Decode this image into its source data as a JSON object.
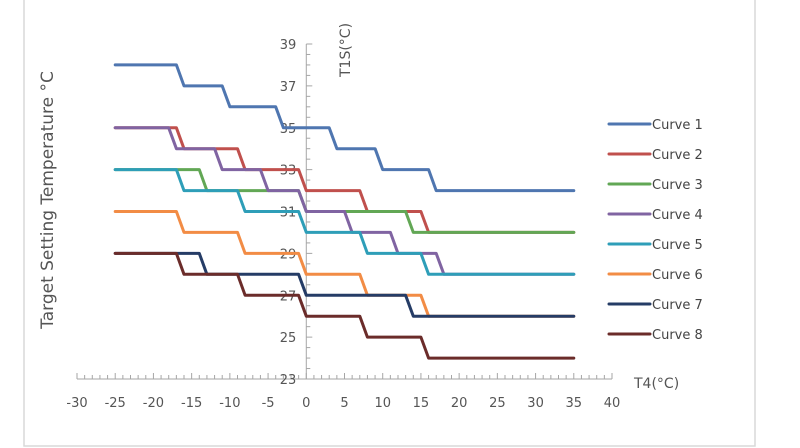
{
  "chart_data": {
    "type": "line",
    "ylabel": "Target  Setting  Temperature  °C",
    "y_axis_title": "T1S(°C)",
    "xlabel": "T4(°C)",
    "xlim": [
      -30,
      40
    ],
    "ylim": [
      23,
      39
    ],
    "x_ticks": [
      -30,
      -25,
      -20,
      -15,
      -10,
      -5,
      0,
      5,
      10,
      15,
      20,
      25,
      30,
      35,
      40
    ],
    "y_ticks": [
      39,
      37,
      35,
      33,
      31,
      29,
      27,
      25,
      23
    ],
    "grid": false,
    "legend_position": "right",
    "series": [
      {
        "name": "Curve 1",
        "color": "#4F76B0",
        "points": [
          [
            -25,
            38
          ],
          [
            -17,
            38
          ],
          [
            -16,
            37
          ],
          [
            -11,
            37
          ],
          [
            -10,
            36
          ],
          [
            -4,
            36
          ],
          [
            -3,
            35
          ],
          [
            3,
            35
          ],
          [
            4,
            34
          ],
          [
            9,
            34
          ],
          [
            10,
            33
          ],
          [
            16,
            33
          ],
          [
            17,
            32
          ],
          [
            35,
            32
          ]
        ]
      },
      {
        "name": "Curve 2",
        "color": "#C0504D",
        "points": [
          [
            -25,
            35
          ],
          [
            -17,
            35
          ],
          [
            -16,
            34
          ],
          [
            -9,
            34
          ],
          [
            -8,
            33
          ],
          [
            -1,
            33
          ],
          [
            0,
            32
          ],
          [
            7,
            32
          ],
          [
            8,
            31
          ],
          [
            15,
            31
          ],
          [
            16,
            30
          ],
          [
            35,
            30
          ]
        ]
      },
      {
        "name": "Curve 3",
        "color": "#62A755",
        "points": [
          [
            -25,
            33
          ],
          [
            -14,
            33
          ],
          [
            -13,
            32
          ],
          [
            -1,
            32
          ],
          [
            0,
            31
          ],
          [
            13,
            31
          ],
          [
            14,
            30
          ],
          [
            35,
            30
          ]
        ]
      },
      {
        "name": "Curve 4",
        "color": "#8064A2",
        "points": [
          [
            -25,
            35
          ],
          [
            -18,
            35
          ],
          [
            -17,
            34
          ],
          [
            -12,
            34
          ],
          [
            -11,
            33
          ],
          [
            -6,
            33
          ],
          [
            -5,
            32
          ],
          [
            -1,
            32
          ],
          [
            0,
            31
          ],
          [
            5,
            31
          ],
          [
            6,
            30
          ],
          [
            11,
            30
          ],
          [
            12,
            29
          ],
          [
            17,
            29
          ],
          [
            18,
            28
          ],
          [
            35,
            28
          ]
        ]
      },
      {
        "name": "Curve 5",
        "color": "#2E9EB8",
        "points": [
          [
            -25,
            33
          ],
          [
            -17,
            33
          ],
          [
            -16,
            32
          ],
          [
            -9,
            32
          ],
          [
            -8,
            31
          ],
          [
            -1,
            31
          ],
          [
            0,
            30
          ],
          [
            7,
            30
          ],
          [
            8,
            29
          ],
          [
            15,
            29
          ],
          [
            16,
            28
          ],
          [
            35,
            28
          ]
        ]
      },
      {
        "name": "Curve 6",
        "color": "#F28C45",
        "points": [
          [
            -25,
            31
          ],
          [
            -17,
            31
          ],
          [
            -16,
            30
          ],
          [
            -9,
            30
          ],
          [
            -8,
            29
          ],
          [
            -1,
            29
          ],
          [
            0,
            28
          ],
          [
            7,
            28
          ],
          [
            8,
            27
          ],
          [
            15,
            27
          ],
          [
            16,
            26
          ],
          [
            35,
            26
          ]
        ]
      },
      {
        "name": "Curve 7",
        "color": "#253C66",
        "points": [
          [
            -25,
            29
          ],
          [
            -14,
            29
          ],
          [
            -13,
            28
          ],
          [
            -1,
            28
          ],
          [
            0,
            27
          ],
          [
            13,
            27
          ],
          [
            14,
            26
          ],
          [
            35,
            26
          ]
        ]
      },
      {
        "name": "Curve 8",
        "color": "#6B2C2A",
        "points": [
          [
            -25,
            29
          ],
          [
            -17,
            29
          ],
          [
            -16,
            28
          ],
          [
            -9,
            28
          ],
          [
            -8,
            27
          ],
          [
            -1,
            27
          ],
          [
            0,
            26
          ],
          [
            7,
            26
          ],
          [
            8,
            25
          ],
          [
            15,
            25
          ],
          [
            16,
            24
          ],
          [
            35,
            24
          ]
        ]
      }
    ]
  }
}
